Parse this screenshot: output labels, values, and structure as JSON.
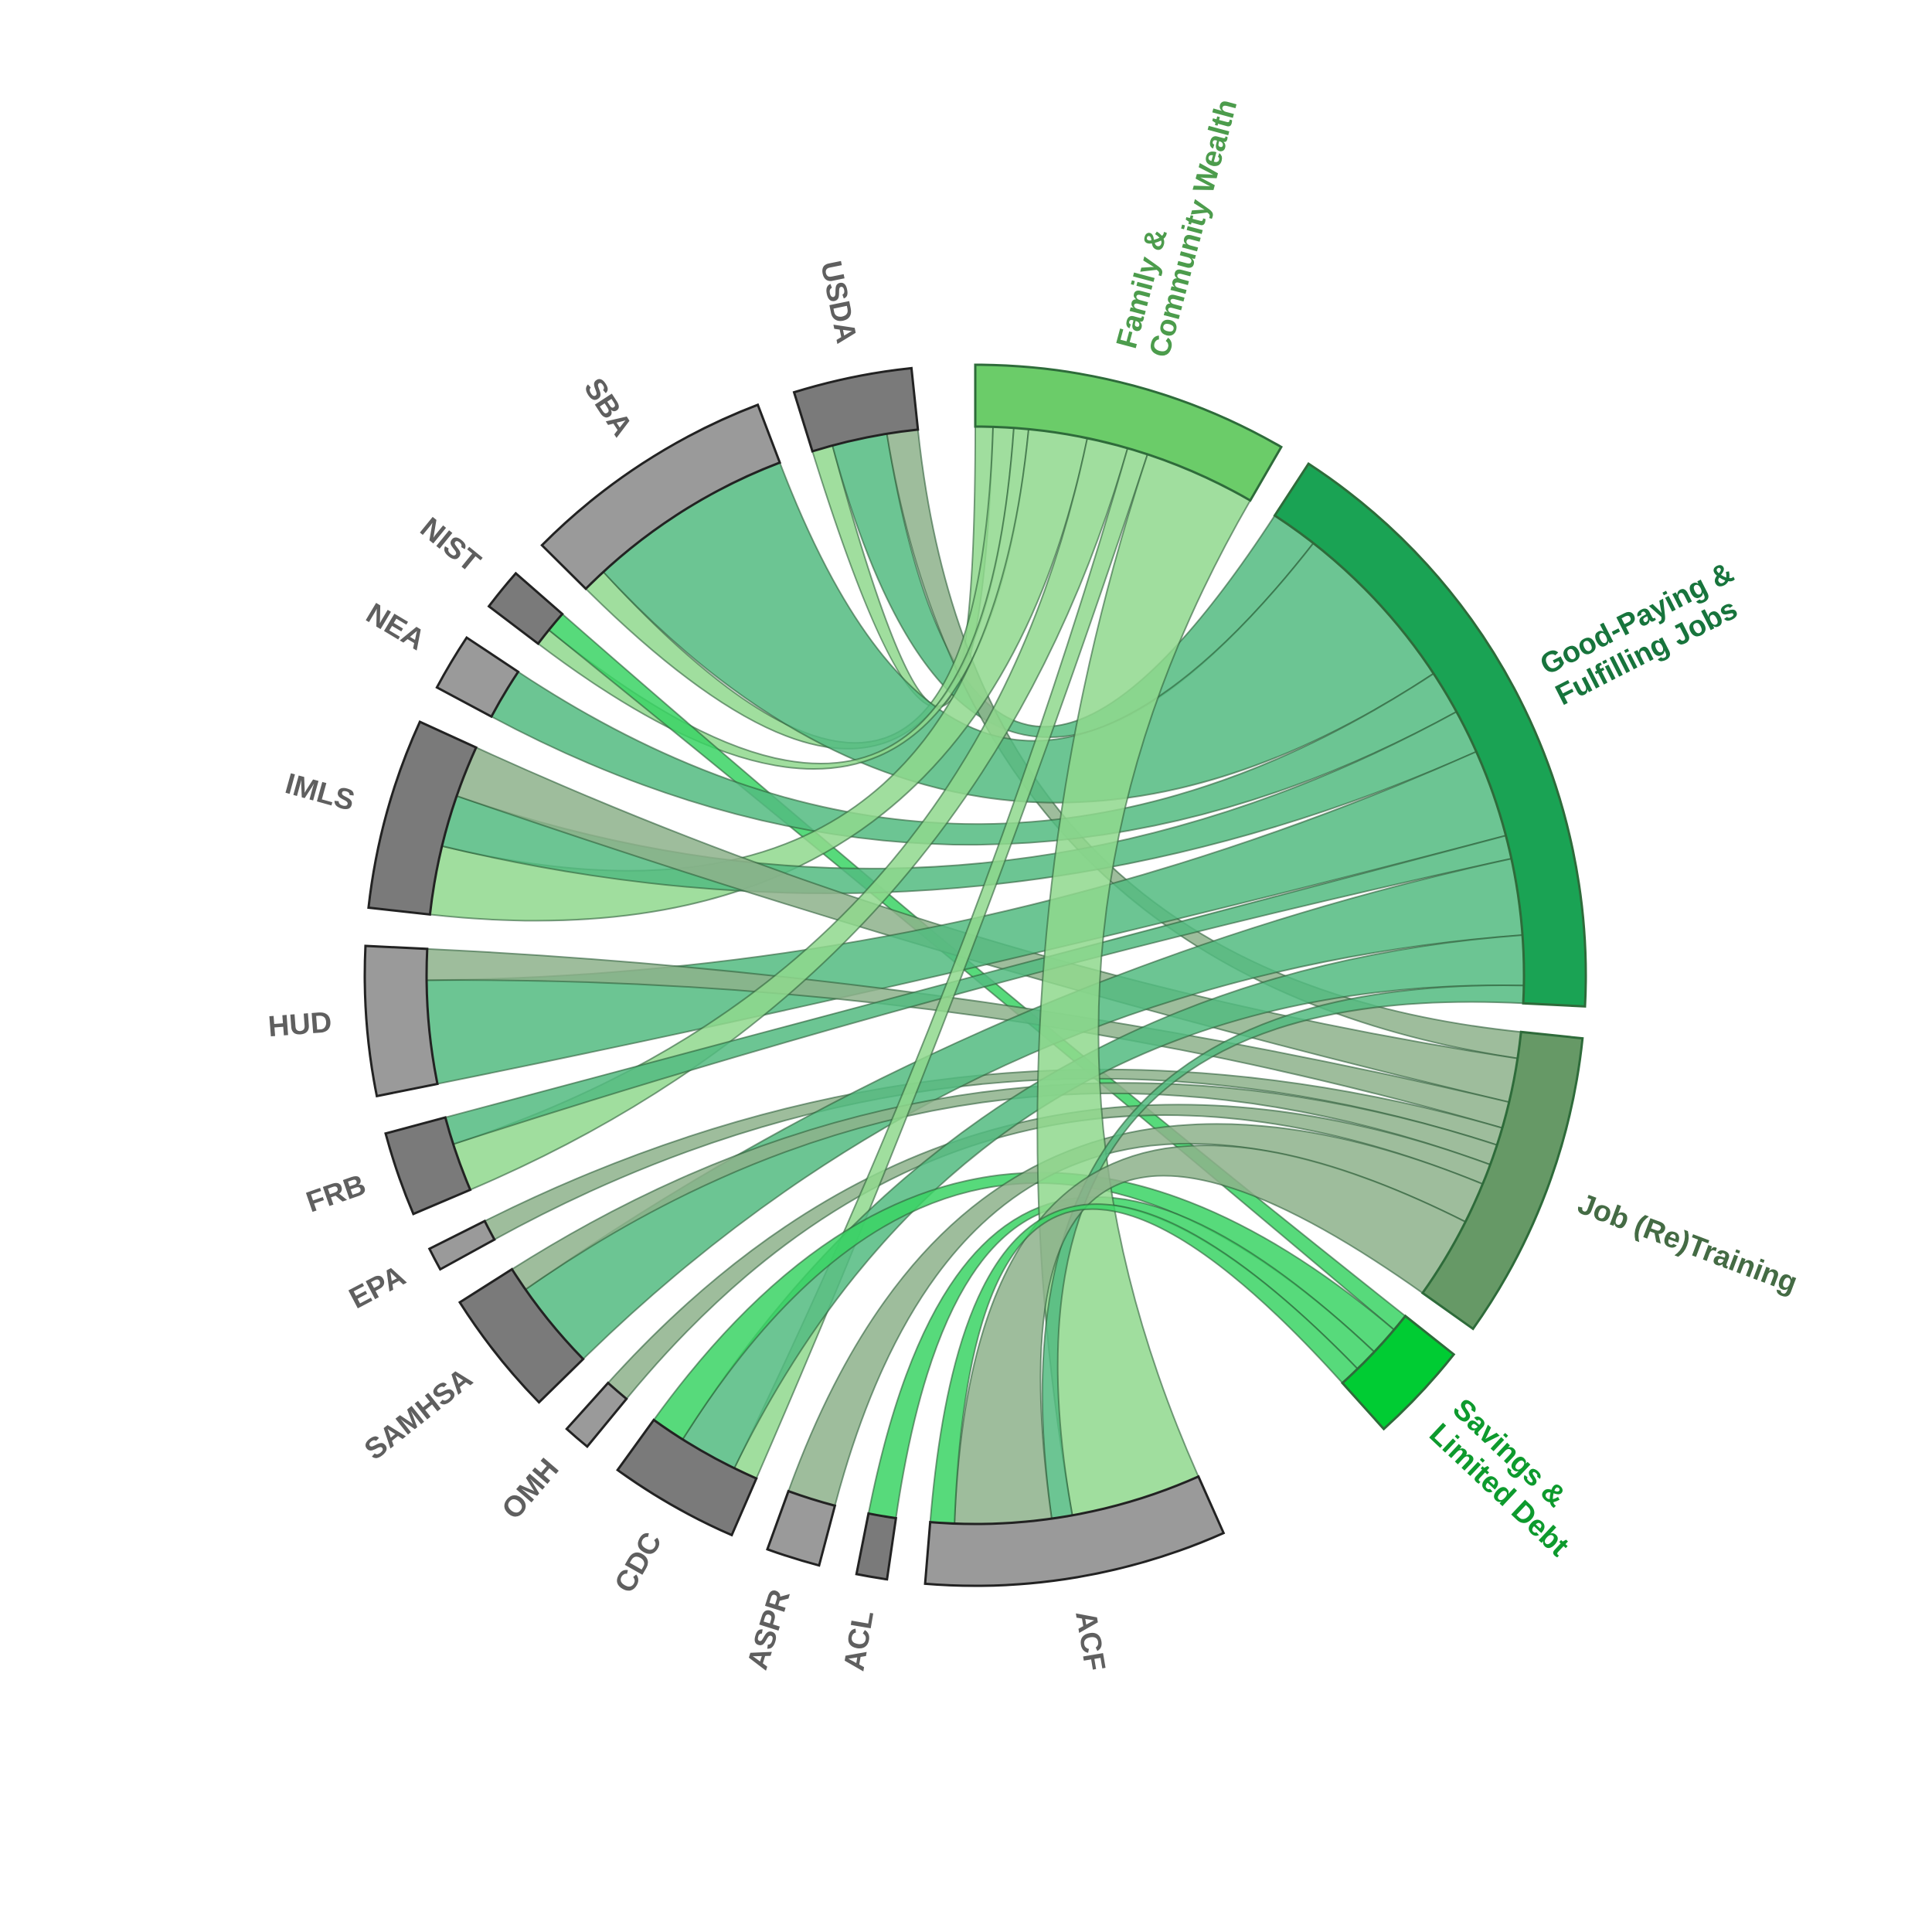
{
  "diagram": {
    "type": "chord",
    "colors": {
      "family_community_wealth": "#6bcc69",
      "good_paying_jobs": "#1aa354",
      "job_retraining": "#669966",
      "savings_limited_debt": "#00cc33",
      "agency_dark": "#7a7a7a",
      "agency_light": "#9a9a9a",
      "agency_label": "#5f5f5f"
    },
    "outcomes": [
      {
        "id": "fcw",
        "label_lines": [
          "Family &",
          "Community Wealth"
        ],
        "color": "#6bcc69",
        "label_color": "#4c9c4c",
        "ribbon_color": "#8fd88d"
      },
      {
        "id": "gpj",
        "label_lines": [
          "Good-Paying &",
          "Fulfilling Jobs"
        ],
        "color": "#1aa354",
        "label_color": "#17743c",
        "ribbon_color": "#52bb80"
      },
      {
        "id": "jrt",
        "label_lines": [
          "Job (Re)Training"
        ],
        "color": "#669966",
        "label_color": "#446b44",
        "ribbon_color": "#8db28b"
      },
      {
        "id": "sld",
        "label_lines": [
          "Savings &",
          "Limited Debt"
        ],
        "color": "#00cc33",
        "label_color": "#0d9a2d",
        "ribbon_color": "#3ad464"
      }
    ],
    "agencies": [
      {
        "id": "USDA",
        "label": "USDA",
        "color": "#7a7a7a"
      },
      {
        "id": "SBA",
        "label": "SBA",
        "color": "#9a9a9a"
      },
      {
        "id": "NIST",
        "label": "NIST",
        "color": "#7a7a7a"
      },
      {
        "id": "NEA",
        "label": "NEA",
        "color": "#9a9a9a"
      },
      {
        "id": "IMLS",
        "label": "IMLS",
        "color": "#7a7a7a"
      },
      {
        "id": "HUD",
        "label": "HUD",
        "color": "#9a9a9a"
      },
      {
        "id": "FRB",
        "label": "FRB",
        "color": "#7a7a7a"
      },
      {
        "id": "EPA",
        "label": "EPA",
        "color": "#9a9a9a"
      },
      {
        "id": "SAMHSA",
        "label": "SAMHSA",
        "color": "#7a7a7a"
      },
      {
        "id": "OMH",
        "label": "OMH",
        "color": "#9a9a9a"
      },
      {
        "id": "CDC",
        "label": "CDC",
        "color": "#7a7a7a"
      },
      {
        "id": "ASPR",
        "label": "ASPR",
        "color": "#9a9a9a"
      },
      {
        "id": "ACL",
        "label": "ACL",
        "color": "#7a7a7a"
      },
      {
        "id": "ACF",
        "label": "ACF",
        "color": "#9a9a9a"
      }
    ],
    "links": [
      {
        "agency": "USDA",
        "outcome": "fcw",
        "value": 0.6
      },
      {
        "agency": "USDA",
        "outcome": "gpj",
        "value": 1.6
      },
      {
        "agency": "USDA",
        "outcome": "jrt",
        "value": 0.9
      },
      {
        "agency": "SBA",
        "outcome": "fcw",
        "value": 0.7
      },
      {
        "agency": "SBA",
        "outcome": "gpj",
        "value": 6.0
      },
      {
        "agency": "NIST",
        "outcome": "fcw",
        "value": 0.5
      },
      {
        "agency": "NIST",
        "outcome": "sld",
        "value": 0.6
      },
      {
        "agency": "NEA",
        "outcome": "gpj",
        "value": 1.5
      },
      {
        "agency": "IMLS",
        "outcome": "fcw",
        "value": 2.0
      },
      {
        "agency": "IMLS",
        "outcome": "gpj",
        "value": 1.5
      },
      {
        "agency": "IMLS",
        "outcome": "jrt",
        "value": 1.5
      },
      {
        "agency": "HUD",
        "outcome": "gpj",
        "value": 3.0
      },
      {
        "agency": "HUD",
        "outcome": "jrt",
        "value": 0.9
      },
      {
        "agency": "FRB",
        "outcome": "fcw",
        "value": 1.4
      },
      {
        "agency": "FRB",
        "outcome": "gpj",
        "value": 0.8
      },
      {
        "agency": "EPA",
        "outcome": "jrt",
        "value": 0.6
      },
      {
        "agency": "SAMHSA",
        "outcome": "gpj",
        "value": 2.6
      },
      {
        "agency": "SAMHSA",
        "outcome": "jrt",
        "value": 0.7
      },
      {
        "agency": "OMH",
        "outcome": "jrt",
        "value": 0.7
      },
      {
        "agency": "CDC",
        "outcome": "fcw",
        "value": 0.7
      },
      {
        "agency": "CDC",
        "outcome": "gpj",
        "value": 1.7
      },
      {
        "agency": "CDC",
        "outcome": "sld",
        "value": 1.0
      },
      {
        "agency": "ASPR",
        "outcome": "jrt",
        "value": 1.4
      },
      {
        "agency": "ACL",
        "outcome": "sld",
        "value": 0.8
      },
      {
        "agency": "ACF",
        "outcome": "fcw",
        "value": 3.8
      },
      {
        "agency": "ACF",
        "outcome": "gpj",
        "value": 0.6
      },
      {
        "agency": "ACF",
        "outcome": "jrt",
        "value": 2.8
      },
      {
        "agency": "ACF",
        "outcome": "sld",
        "value": 0.7
      }
    ]
  }
}
